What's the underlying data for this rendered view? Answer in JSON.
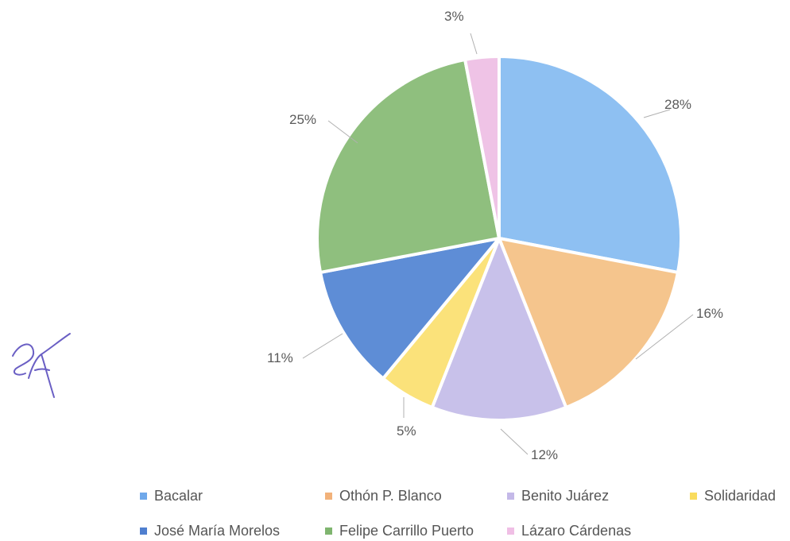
{
  "chart_data": {
    "type": "pie",
    "title": "",
    "start_angle_deg": 0,
    "direction": "clockwise",
    "slices": [
      {
        "label": "Bacalar",
        "value": 28,
        "display": "28%",
        "color": "#8ec0f2"
      },
      {
        "label": "Othón P. Blanco",
        "value": 16,
        "display": "16%",
        "color": "#f5c58d"
      },
      {
        "label": "Benito Juárez",
        "value": 12,
        "display": "12%",
        "color": "#c8c1ea"
      },
      {
        "label": "Solidaridad",
        "value": 5,
        "display": "5%",
        "color": "#fbe27a"
      },
      {
        "label": "José María Morelos",
        "value": 11,
        "display": "11%",
        "color": "#5e8dd6"
      },
      {
        "label": "Felipe Carrillo Puerto",
        "value": 25,
        "display": "25%",
        "color": "#8fbf7e"
      },
      {
        "label": "Lázaro Cárdenas",
        "value": 3,
        "display": "3%",
        "color": "#efc3e6"
      }
    ],
    "legend_position": "bottom"
  },
  "legend": {
    "items": [
      {
        "label": "Bacalar",
        "swatch": "#6fa8ea"
      },
      {
        "label": "Othón P. Blanco",
        "swatch": "#f2b27a"
      },
      {
        "label": "Benito Juárez",
        "swatch": "#c4b9e8"
      },
      {
        "label": "Solidaridad",
        "swatch": "#f9dc5e"
      },
      {
        "label": "José María Morelos",
        "swatch": "#4f7fcf"
      },
      {
        "label": "Felipe Carrillo Puerto",
        "swatch": "#7fb56f"
      },
      {
        "label": "Lázaro Cárdenas",
        "swatch": "#f0bfe5"
      }
    ]
  },
  "signature": {
    "kind": "handwritten-initials",
    "ink_color": "#6a5fc4"
  }
}
